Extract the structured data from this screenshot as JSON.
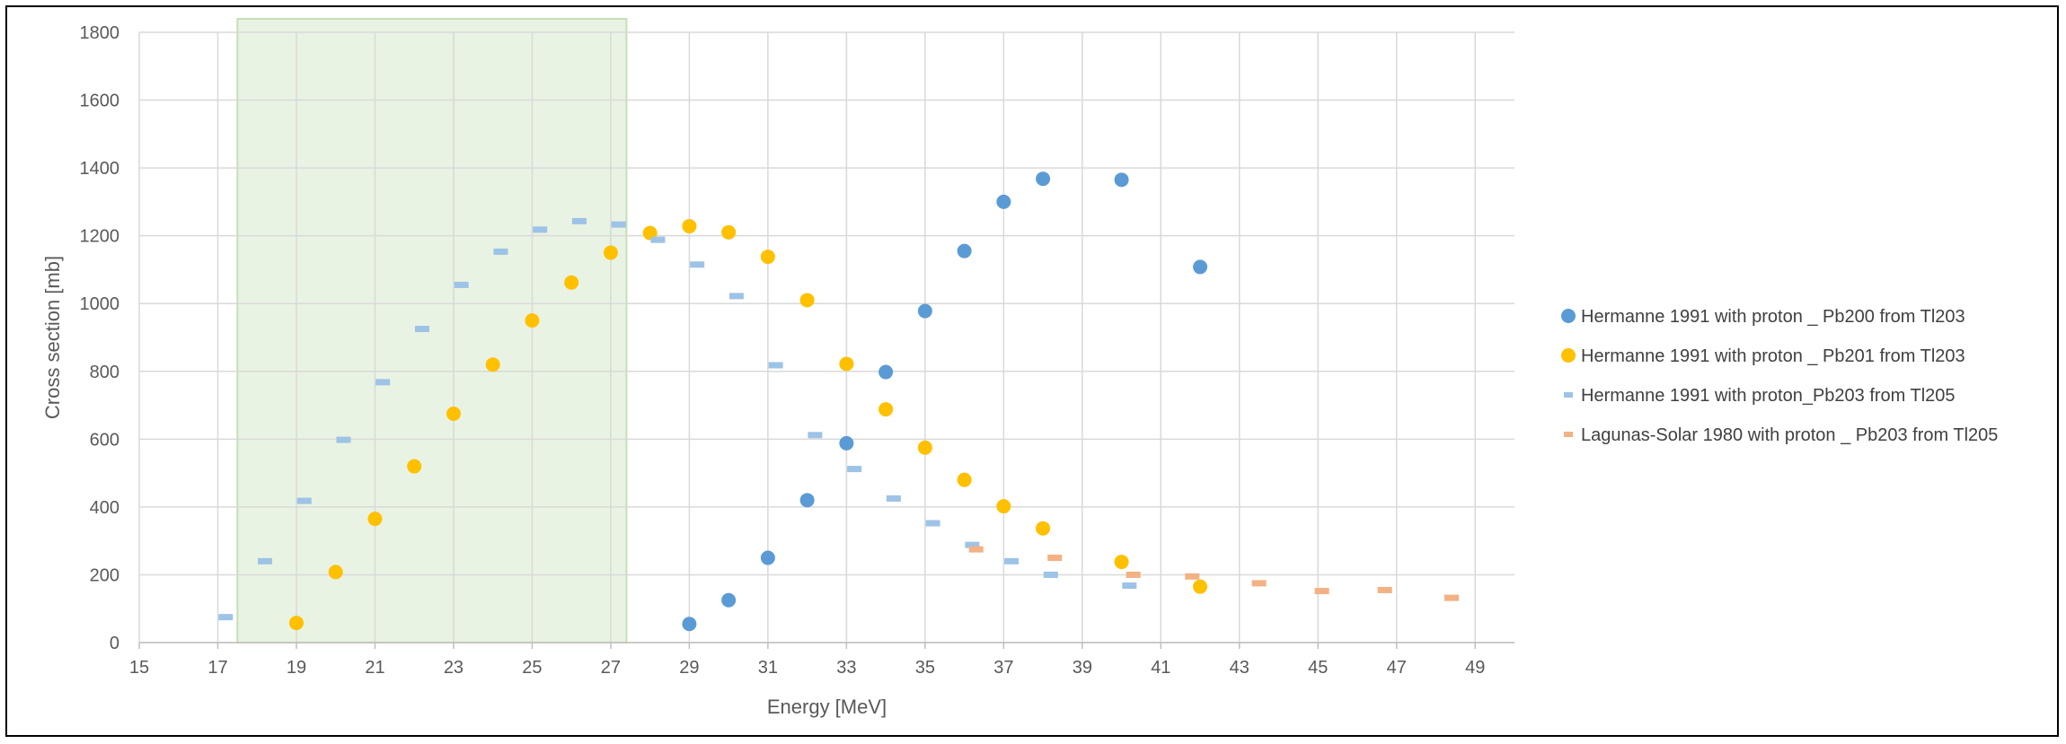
{
  "chart_data": {
    "type": "scatter",
    "xlabel": "Energy [MeV]",
    "ylabel": "Cross section [mb]",
    "xlim": [
      15,
      50
    ],
    "ylim": [
      0,
      1800
    ],
    "x_ticks": [
      15,
      17,
      19,
      21,
      23,
      25,
      27,
      29,
      31,
      33,
      35,
      37,
      39,
      41,
      43,
      45,
      47,
      49
    ],
    "y_ticks": [
      0,
      200,
      400,
      600,
      800,
      1000,
      1200,
      1400,
      1600,
      1800
    ],
    "grid": true,
    "legend_position": "right",
    "highlight_region": {
      "x": [
        17.5,
        27.4
      ],
      "color": "#e2efd9"
    },
    "series": [
      {
        "name": "Hermanne 1991 with proton _ Pb200 from Tl203",
        "marker": "circle",
        "color": "#5b9bd5",
        "x": [
          29,
          30,
          31,
          32,
          33,
          34,
          35,
          36,
          37,
          38,
          40,
          42
        ],
        "y": [
          55,
          125,
          250,
          420,
          588,
          798,
          978,
          1155,
          1300,
          1368,
          1365,
          1108
        ]
      },
      {
        "name": "Hermanne 1991 with proton _ Pb201 from Tl203",
        "marker": "circle",
        "color": "#ffc000",
        "x": [
          19,
          20,
          21,
          22,
          23,
          24,
          25,
          26,
          27,
          28,
          29,
          30,
          31,
          32,
          33,
          34,
          35,
          36,
          37,
          38,
          40,
          42
        ],
        "y": [
          58,
          208,
          365,
          520,
          675,
          820,
          950,
          1062,
          1150,
          1208,
          1228,
          1210,
          1138,
          1010,
          822,
          688,
          575,
          480,
          402,
          337,
          238,
          165
        ]
      },
      {
        "name": "Hermanne 1991 with proton_Pb203 from Tl205",
        "marker": "dash",
        "color": "#9dc3e6",
        "x": [
          17.2,
          18.2,
          19.2,
          20.2,
          21.2,
          22.2,
          23.2,
          24.2,
          25.2,
          26.2,
          27.2,
          28.2,
          29.2,
          30.2,
          31.2,
          32.2,
          33.2,
          34.2,
          35.2,
          36.2,
          37.2,
          38.2,
          40.2
        ],
        "y": [
          75,
          240,
          418,
          598,
          768,
          925,
          1055,
          1153,
          1218,
          1243,
          1233,
          1188,
          1115,
          1022,
          818,
          612,
          512,
          425,
          352,
          288,
          240,
          200,
          168
        ]
      },
      {
        "name": "Lagunas-Solar 1980 with proton _ Pb203 from Tl205",
        "marker": "dash",
        "color": "#f4b183",
        "x": [
          36.3,
          38.3,
          40.3,
          41.8,
          43.5,
          45.1,
          46.7,
          48.4
        ],
        "y": [
          275,
          250,
          200,
          195,
          175,
          152,
          155,
          132
        ]
      }
    ]
  }
}
